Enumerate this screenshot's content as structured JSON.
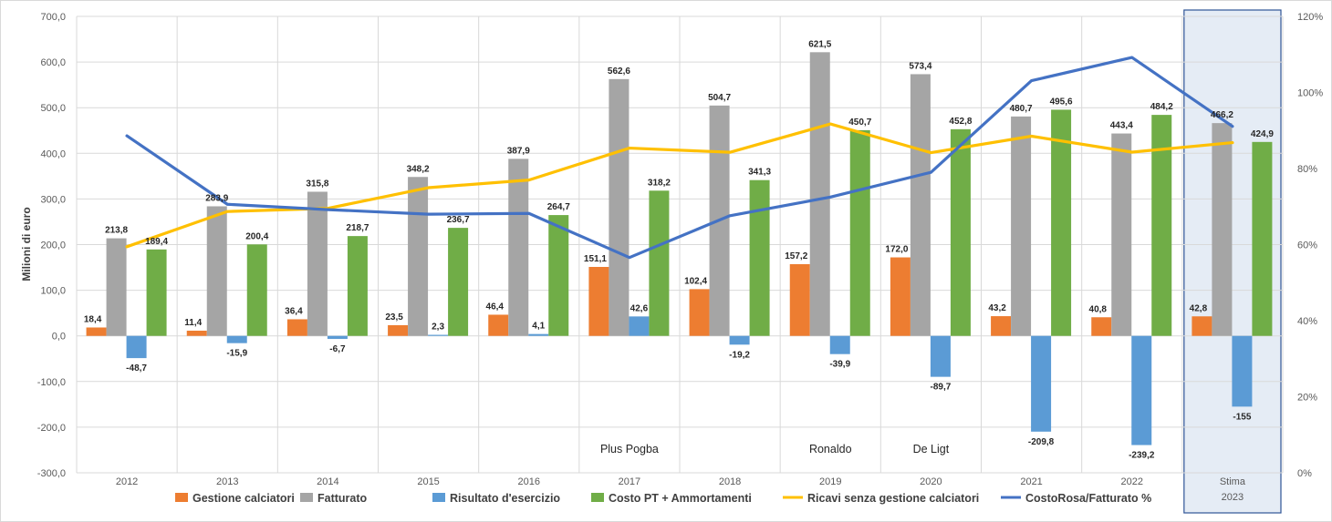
{
  "chart_data": {
    "type": "bar",
    "ylabel": "Milioni di euro",
    "ylim": [
      -300,
      700
    ],
    "yticks": [
      "-300,0",
      "-200,0",
      "-100,0",
      "0,0",
      "100,0",
      "200,0",
      "300,0",
      "400,0",
      "500,0",
      "600,0",
      "700,0"
    ],
    "y2lim": [
      0,
      120
    ],
    "y2ticks": [
      "0%",
      "20%",
      "40%",
      "60%",
      "80%",
      "100%",
      "120%"
    ],
    "categories": [
      "2012",
      "2013",
      "2014",
      "2015",
      "2016",
      "2017",
      "2018",
      "2019",
      "2020",
      "2021",
      "2022",
      "Stima 2023"
    ],
    "grid": true,
    "legend_position": "bottom",
    "highlight_category": "Stima 2023",
    "series": [
      {
        "name": "Gestione calciatori",
        "kind": "bar",
        "color": "#ED7D31",
        "values": [
          18.4,
          11.4,
          36.4,
          23.5,
          46.4,
          151.1,
          102.4,
          157.2,
          172.0,
          43.2,
          40.8,
          42.8
        ],
        "labels": [
          "18,4",
          "11,4",
          "36,4",
          "23,5",
          "46,4",
          "151,1",
          "102,4",
          "157,2",
          "172,0",
          "43,2",
          "40,8",
          "42,8"
        ]
      },
      {
        "name": "Fatturato",
        "kind": "bar",
        "color": "#A5A5A5",
        "values": [
          213.8,
          283.9,
          315.8,
          348.2,
          387.9,
          562.6,
          504.7,
          621.5,
          573.4,
          480.7,
          443.4,
          466.2
        ],
        "labels": [
          "213,8",
          "283,9",
          "315,8",
          "348,2",
          "387,9",
          "562,6",
          "504,7",
          "621,5",
          "573,4",
          "480,7",
          "443,4",
          "466,2"
        ]
      },
      {
        "name": "Risultato d'esercizio",
        "kind": "bar",
        "color": "#5B9BD5",
        "values": [
          -48.7,
          -15.9,
          -6.7,
          2.3,
          4.1,
          42.6,
          -19.2,
          -39.9,
          -89.7,
          -209.8,
          -239.2,
          -155
        ],
        "labels": [
          "-48,7",
          "-15,9",
          "-6,7",
          "2,3",
          "4,1",
          "42,6",
          "-19,2",
          "-39,9",
          "-89,7",
          "-209,8",
          "-239,2",
          "-155"
        ]
      },
      {
        "name": "Costo PT + Ammortamenti",
        "kind": "bar",
        "color": "#70AD47",
        "values": [
          189.4,
          200.4,
          218.7,
          236.7,
          264.7,
          318.2,
          341.3,
          450.7,
          452.8,
          495.6,
          484.2,
          424.9
        ],
        "labels": [
          "189,4",
          "200,4",
          "218,7",
          "236,7",
          "264,7",
          "318,2",
          "341,3",
          "450,7",
          "452,8",
          "495,6",
          "484,2",
          "424,9"
        ]
      },
      {
        "name": "Ricavi senza gestione calciatori",
        "kind": "line",
        "axis": "left",
        "color": "#FFC000",
        "values": [
          195.4,
          272.5,
          279.4,
          324.7,
          341.5,
          411.5,
          402.3,
          464.3,
          401.4,
          437.5,
          402.6,
          423.4
        ]
      },
      {
        "name": "CostoRosa/Fatturato %",
        "kind": "line",
        "axis": "right",
        "color": "#4472C4",
        "values": [
          88.6,
          70.6,
          69.2,
          68.0,
          68.2,
          56.6,
          67.6,
          72.5,
          79.0,
          103.1,
          109.2,
          91.1
        ]
      }
    ],
    "annotations": [
      {
        "category": "2017",
        "text": "Plus Pogba"
      },
      {
        "category": "2019",
        "text": "Ronaldo"
      },
      {
        "category": "2020",
        "text": "De Ligt"
      }
    ]
  }
}
